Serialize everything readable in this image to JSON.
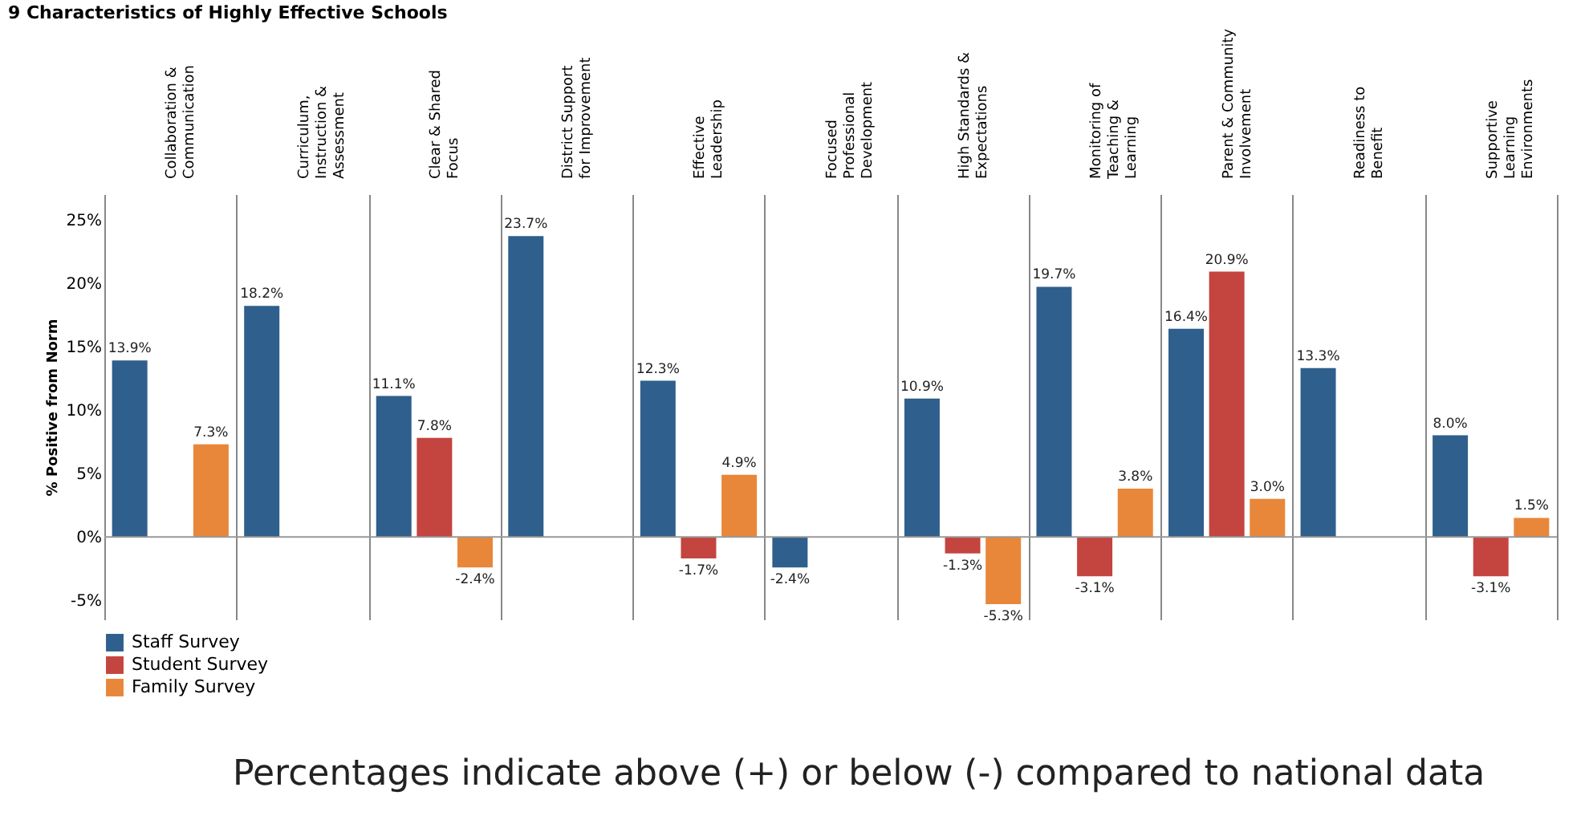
{
  "chart_data": {
    "type": "bar",
    "title": "9 Characteristics of Highly Effective Schools",
    "categories": [
      "Collaboration & Communication",
      "Curriculum, Instruction & Assessment",
      "Clear & Shared Focus",
      "District Support for Improvement",
      "Effective Leadership",
      "Focused Professional Development",
      "High Standards & Expectations",
      "Monitoring of Teaching & Learning",
      "Parent & Community Involvement",
      "Readiness to Benefit",
      "Supportive Learning Environments"
    ],
    "series": [
      {
        "name": "Staff Survey",
        "color": "#2f5f8c",
        "values": [
          13.9,
          18.2,
          11.1,
          23.7,
          12.3,
          -2.4,
          10.9,
          19.7,
          16.4,
          13.3,
          8.0
        ],
        "value_labels": [
          "13.9%",
          "18.2%",
          "11.1%",
          "23.7%",
          "12.3%",
          "-2.4%",
          "10.9%",
          "19.7%",
          "16.4%",
          "13.3%",
          "8.0%"
        ]
      },
      {
        "name": "Student Survey",
        "color": "#c4443f",
        "values": [
          null,
          null,
          7.8,
          null,
          -1.7,
          null,
          -1.3,
          -3.1,
          20.9,
          null,
          -3.1
        ],
        "value_labels": [
          null,
          null,
          "7.8%",
          null,
          "-1.7%",
          null,
          "-1.3%",
          "-3.1%",
          "20.9%",
          null,
          "-3.1%"
        ]
      },
      {
        "name": "Family Survey",
        "color": "#e8873a",
        "values": [
          7.3,
          null,
          -2.4,
          null,
          4.9,
          null,
          -5.3,
          3.8,
          3.0,
          null,
          1.5
        ],
        "value_labels": [
          "7.3%",
          null,
          "-2.4%",
          null,
          "4.9%",
          null,
          "-5.3%",
          "3.8%",
          "3.0%",
          null,
          "1.5%"
        ]
      }
    ],
    "ylabel": "% Positive from Norm",
    "ylim": [
      -6.5,
      27
    ],
    "yticks": [
      {
        "value": -5,
        "label": "-5%"
      },
      {
        "value": 0,
        "label": "0%"
      },
      {
        "value": 5,
        "label": "5%"
      },
      {
        "value": 10,
        "label": "10%"
      },
      {
        "value": 15,
        "label": "15%"
      },
      {
        "value": 20,
        "label": "20%"
      },
      {
        "value": 25,
        "label": "25%"
      }
    ],
    "ref_lines": [
      {
        "axis": "y",
        "value": 0
      }
    ],
    "grid": "x",
    "legend": "bottom left",
    "annotations": [
      "Percentages indicate above (+) or below (-) compared to national data"
    ]
  }
}
